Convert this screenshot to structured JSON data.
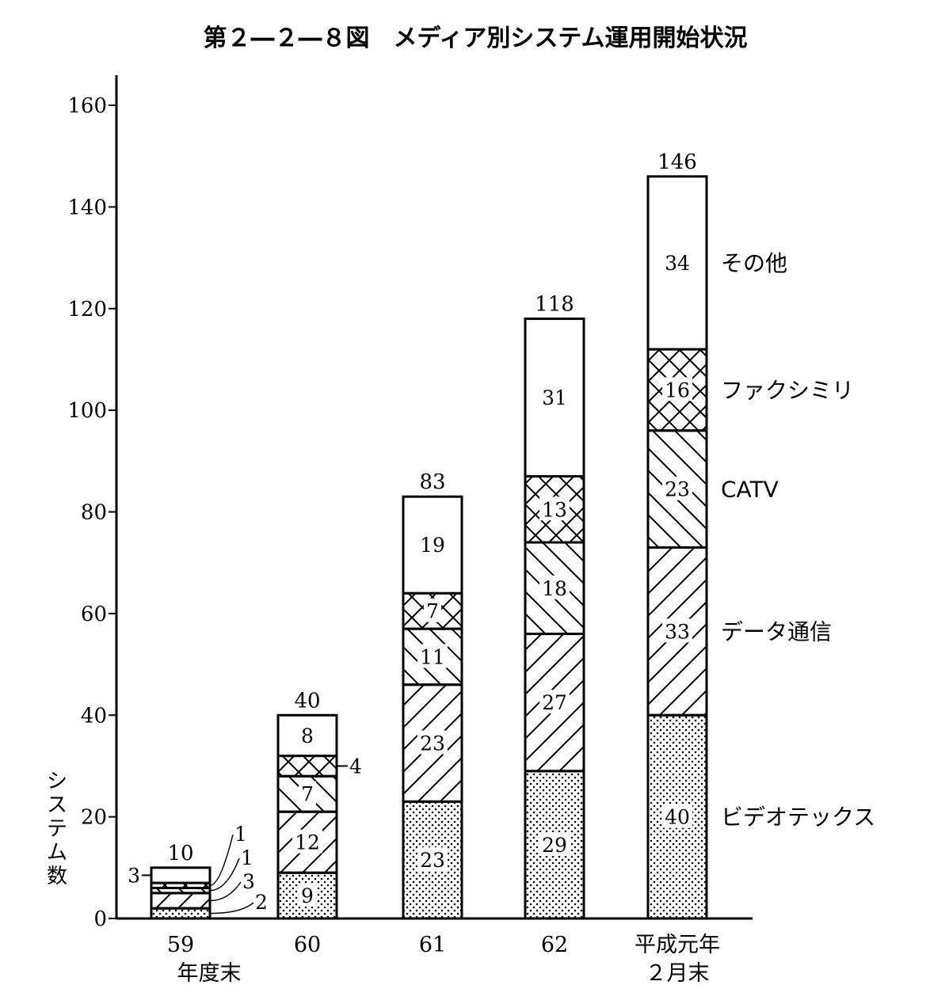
{
  "chart_data": {
    "type": "bar",
    "stacked": true,
    "title": "第２―２―８図　メディア別システム運用開始状況",
    "ylabel": "システム数",
    "xlabel": "",
    "ylim": [
      0,
      160
    ],
    "yticks": [
      0,
      20,
      40,
      60,
      80,
      100,
      120,
      140,
      160
    ],
    "categories": [
      [
        "59",
        "年度末"
      ],
      [
        "60"
      ],
      [
        "61"
      ],
      [
        "62"
      ],
      [
        "平成元年",
        "２月末"
      ]
    ],
    "totals": [
      10,
      40,
      83,
      118,
      146
    ],
    "series": [
      {
        "name": "ビデオテックス",
        "pattern": "dots",
        "values": [
          2,
          9,
          23,
          29,
          40
        ]
      },
      {
        "name": "データ通信",
        "pattern": "diag-right",
        "values": [
          3,
          12,
          23,
          27,
          33
        ]
      },
      {
        "name": "CATV",
        "pattern": "diag-left",
        "values": [
          1,
          7,
          11,
          18,
          23
        ]
      },
      {
        "name": "ファクシミリ",
        "pattern": "cross",
        "values": [
          1,
          4,
          7,
          13,
          16
        ]
      },
      {
        "name": "その他",
        "pattern": "blank",
        "values": [
          3,
          8,
          19,
          31,
          34
        ]
      }
    ],
    "legend_position": "right",
    "grid": false
  }
}
